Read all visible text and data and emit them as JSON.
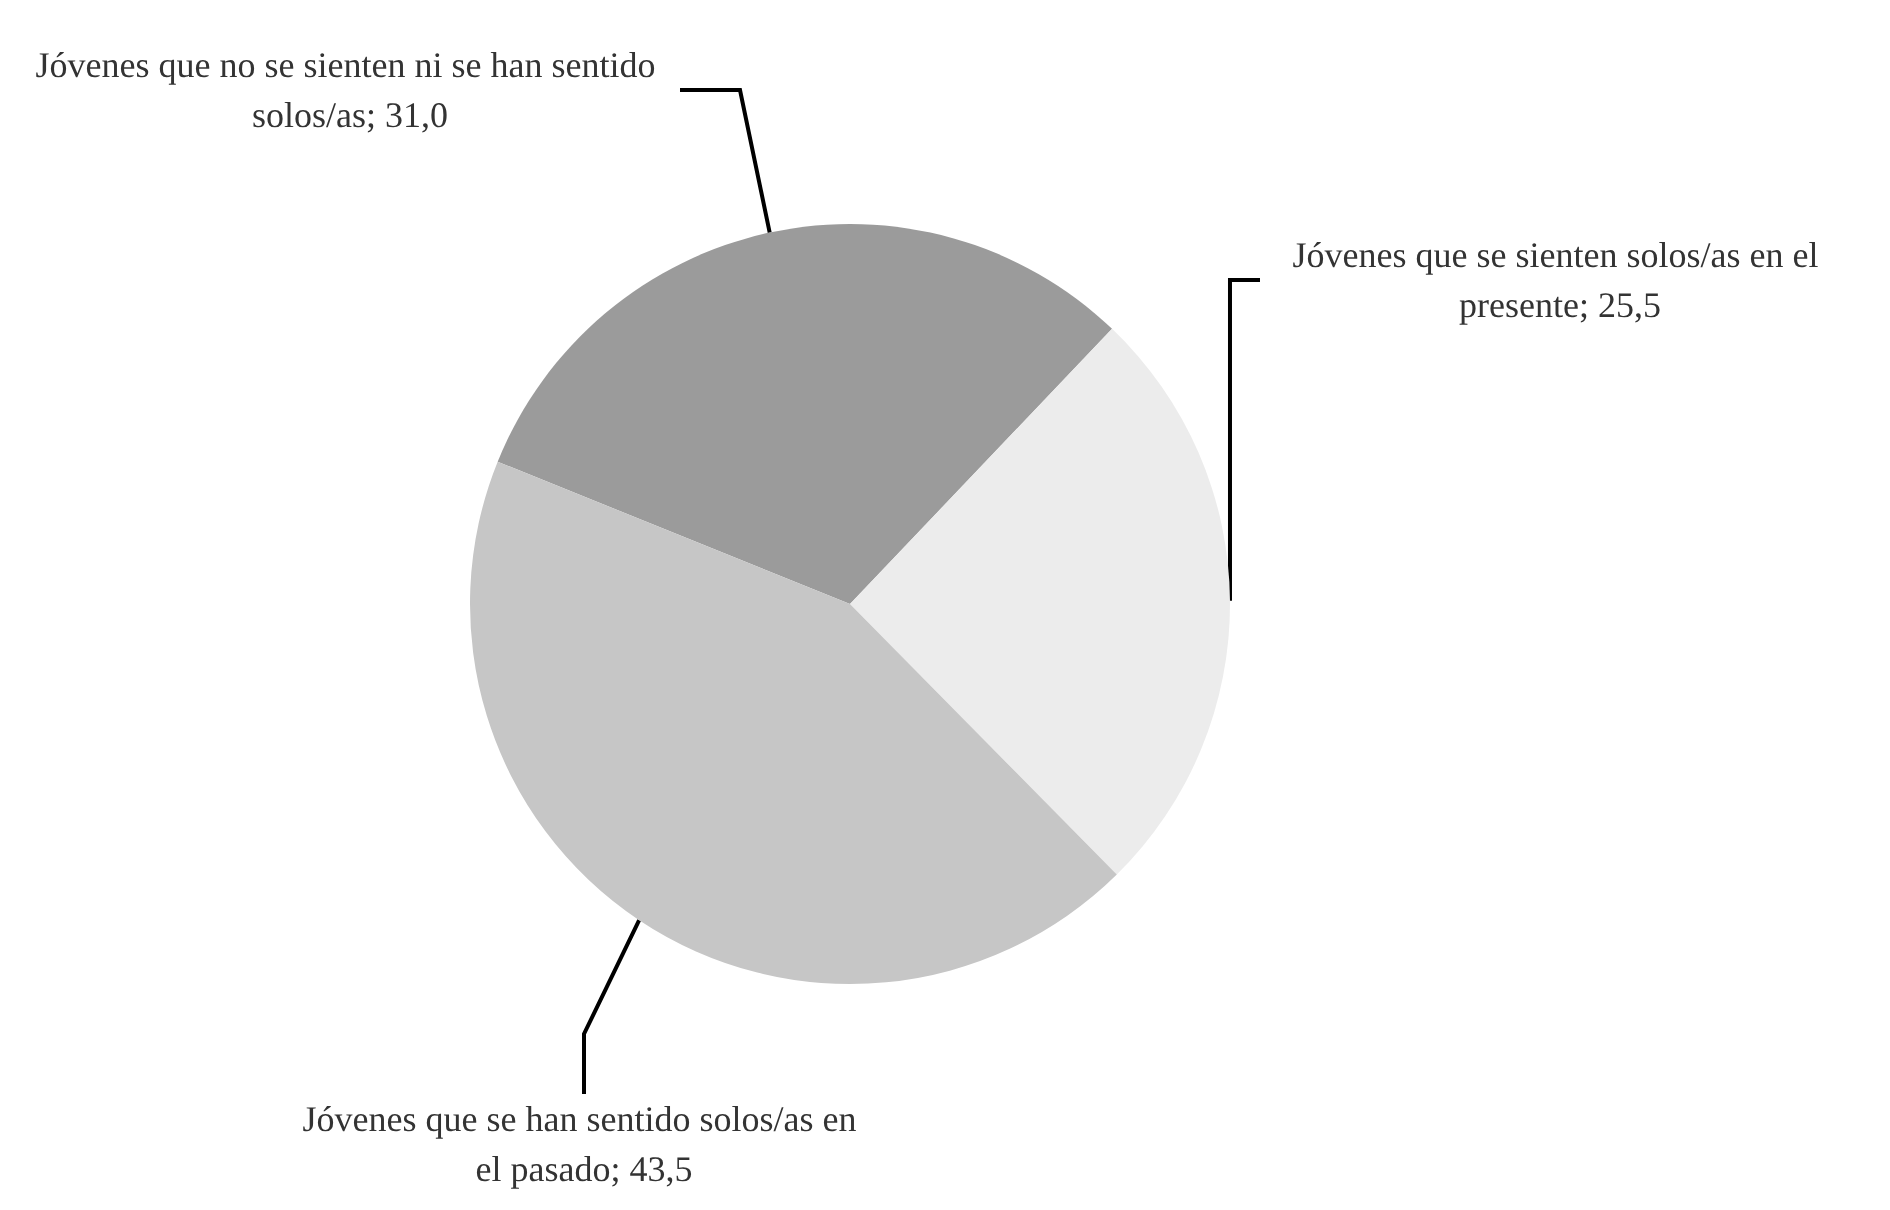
{
  "chart_data": {
    "type": "pie",
    "categories": [
      "Jóvenes que no se sienten ni se han sentido solos/as",
      "Jóvenes que se sienten solos/as en el presente",
      "Jóvenes que se han sentido solos/as en el pasado"
    ],
    "values": [
      31.0,
      25.5,
      43.5
    ],
    "value_labels": [
      "31,0",
      "25,5",
      "43,5"
    ],
    "colors": [
      "#9b9b9b",
      "#ececec",
      "#c6c6c6"
    ],
    "legend": false
  }
}
